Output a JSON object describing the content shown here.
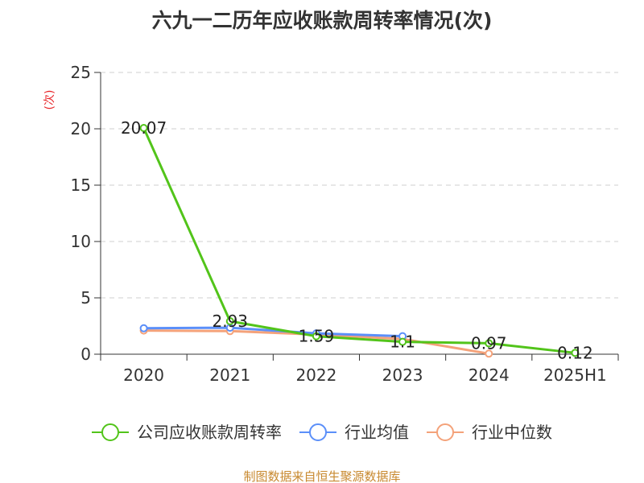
{
  "chart_data": {
    "type": "line",
    "title": "六九一二历年应收账款周转率情况(次)",
    "ylabel": "(次)",
    "x": [
      "2020",
      "2021",
      "2022",
      "2023",
      "2024",
      "2025H1"
    ],
    "ylim": [
      0,
      25
    ],
    "yticks": [
      0,
      5,
      10,
      15,
      20,
      25
    ],
    "grid": true,
    "legend_position": "bottom",
    "series": [
      {
        "name": "公司应收账款周转率",
        "color": "#52c41a",
        "values": [
          20.07,
          2.93,
          1.59,
          1.1,
          0.97,
          0.12
        ],
        "labels": [
          "20.07",
          "2.93",
          "1.59",
          "1.1",
          "0.97",
          "0.12"
        ]
      },
      {
        "name": "行业均值",
        "color": "#5b8ff9",
        "values": [
          2.3,
          2.35,
          1.85,
          1.6,
          null,
          null
        ]
      },
      {
        "name": "行业中位数",
        "color": "#f4a27a",
        "values": [
          2.1,
          2.05,
          1.75,
          1.35,
          0.05,
          null
        ]
      }
    ],
    "ylabel_color": "#e8262a"
  },
  "source": {
    "text": "制图数据来自恒生聚源数据库",
    "color": "#c8892f"
  }
}
